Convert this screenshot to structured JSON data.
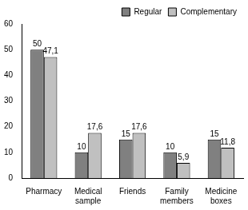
{
  "chart_data": {
    "type": "bar",
    "categories": [
      "Pharmacy",
      "Medical sample",
      "Friends",
      "Family members",
      "Medicine boxes"
    ],
    "series": [
      {
        "name": "Regular",
        "color": "#808080",
        "values": [
          50,
          10,
          15,
          10,
          15
        ]
      },
      {
        "name": "Complementary",
        "color": "#c0c0c0",
        "values": [
          47.1,
          17.6,
          17.6,
          5.9,
          11.8
        ],
        "value_labels": [
          "47,1",
          "17,6",
          "17,6",
          "5,9",
          "11,8"
        ]
      }
    ],
    "ylim": [
      0,
      60
    ],
    "yticks": [
      0,
      10,
      20,
      30,
      40,
      50,
      60
    ],
    "grid": false,
    "legend": "top-right",
    "data_labels": true
  }
}
